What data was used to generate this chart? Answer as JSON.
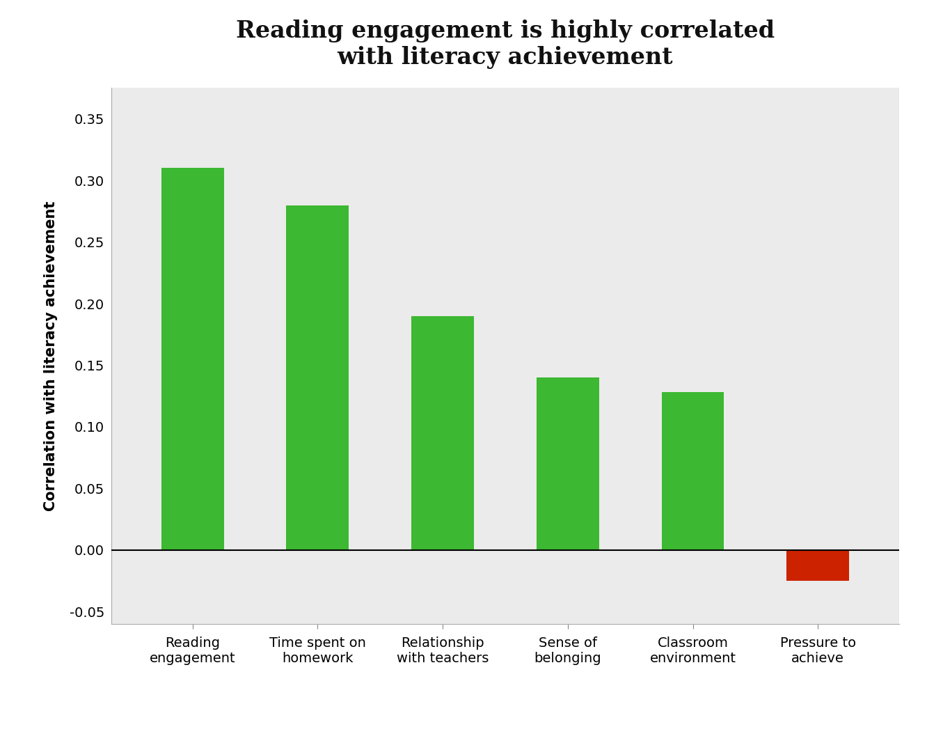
{
  "title": "Reading engagement is highly correlated\nwith literacy achievement",
  "ylabel": "Correlation with literacy achievement",
  "categories": [
    "Reading\nengagement",
    "Time spent on\nhomework",
    "Relationship\nwith teachers",
    "Sense of\nbelonging",
    "Classroom\nenvironment",
    "Pressure to\nachieve"
  ],
  "values": [
    0.31,
    0.28,
    0.19,
    0.14,
    0.128,
    -0.025
  ],
  "bar_colors": [
    "#3cb832",
    "#3cb832",
    "#3cb832",
    "#3cb832",
    "#3cb832",
    "#cc2200"
  ],
  "ylim": [
    -0.06,
    0.375
  ],
  "yticks": [
    -0.05,
    0.0,
    0.05,
    0.1,
    0.15,
    0.2,
    0.25,
    0.3,
    0.35
  ],
  "background_color": "#ebebeb",
  "figure_facecolor": "#ffffff",
  "title_fontsize": 24,
  "axis_label_fontsize": 15,
  "tick_fontsize": 14,
  "bar_width": 0.5
}
